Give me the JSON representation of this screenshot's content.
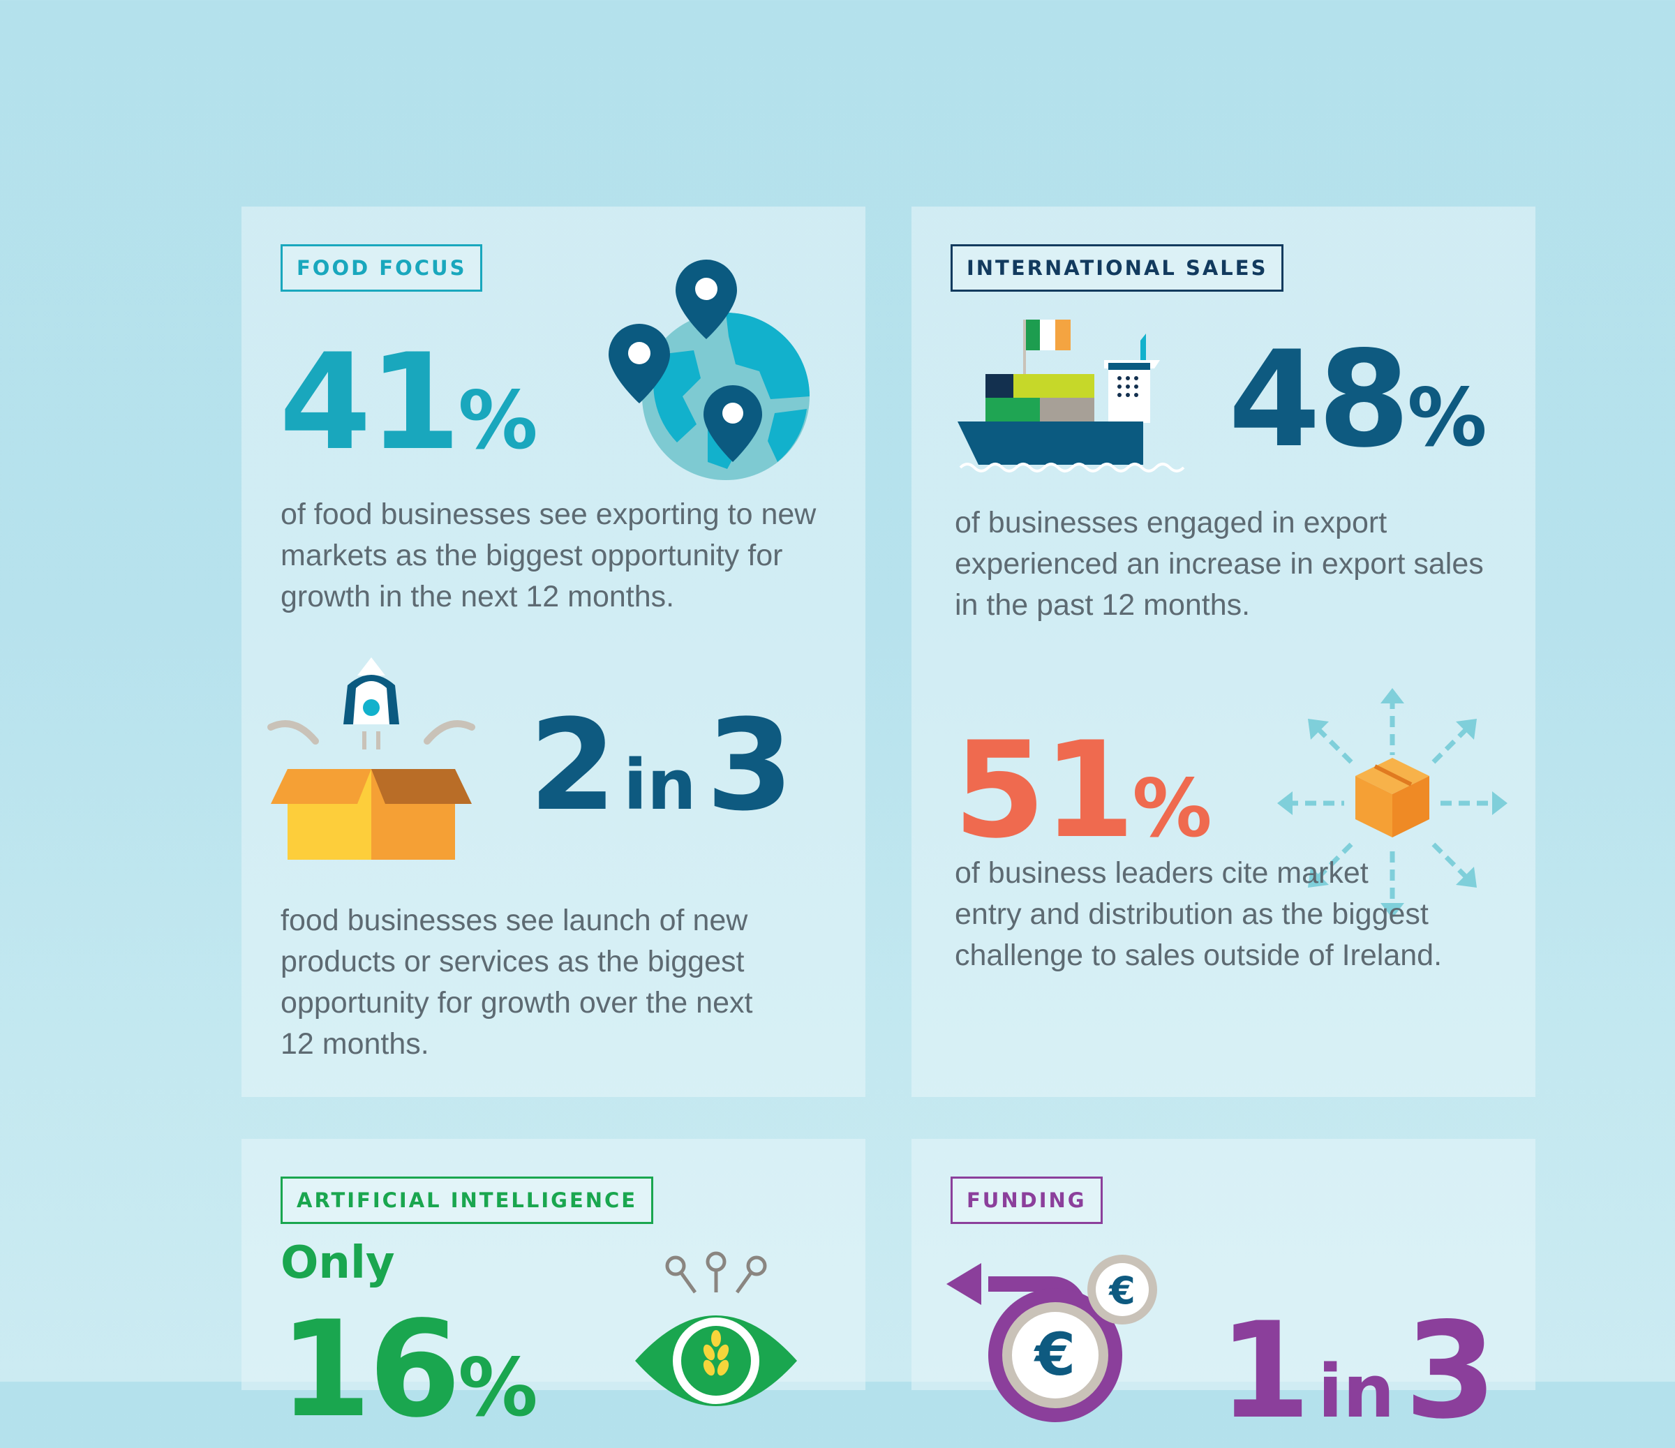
{
  "food_focus": {
    "tag": "FOOD FOCUS",
    "stat_number": "41",
    "stat_unit": "%",
    "description": "of food businesses see exporting to new markets as the biggest opportunity for growth in the next 12 months.",
    "second_stat_a": "2",
    "second_stat_in": "in",
    "second_stat_b": "3",
    "second_description": "food businesses see launch of new products or services as the biggest opportunity for growth over the next 12 months.",
    "icons": [
      "globe-with-pins-icon",
      "rocket-box-icon"
    ]
  },
  "international_sales": {
    "tag": "INTERNATIONAL SALES",
    "stat_number": "48",
    "stat_unit": "%",
    "description": "of businesses engaged in export experienced an increase in export sales in the past 12 months.",
    "second_stat_number": "51",
    "second_stat_unit": "%",
    "second_description": "of business leaders cite market entry and distribution as the biggest challenge to sales outside of Ireland.",
    "icons": [
      "cargo-ship-icon",
      "box-distribution-icon"
    ]
  },
  "artificial_intelligence": {
    "tag": "ARTIFICIAL INTELLIGENCE",
    "prefix": "Only",
    "stat_number": "16",
    "stat_unit": "%",
    "icons": [
      "eye-wheat-icon"
    ]
  },
  "funding": {
    "tag": "FUNDING",
    "stat_a": "1",
    "stat_in": "in",
    "stat_b": "3",
    "icons": [
      "euro-coins-icon"
    ]
  },
  "colors": {
    "food_accent": "#19a7bd",
    "intl_accent": "#123a5e",
    "stat_dark": "#0e5a80",
    "stat_orange": "#ef6a4f",
    "ai_accent": "#1aa64f",
    "funding_accent": "#8b3f9b"
  }
}
